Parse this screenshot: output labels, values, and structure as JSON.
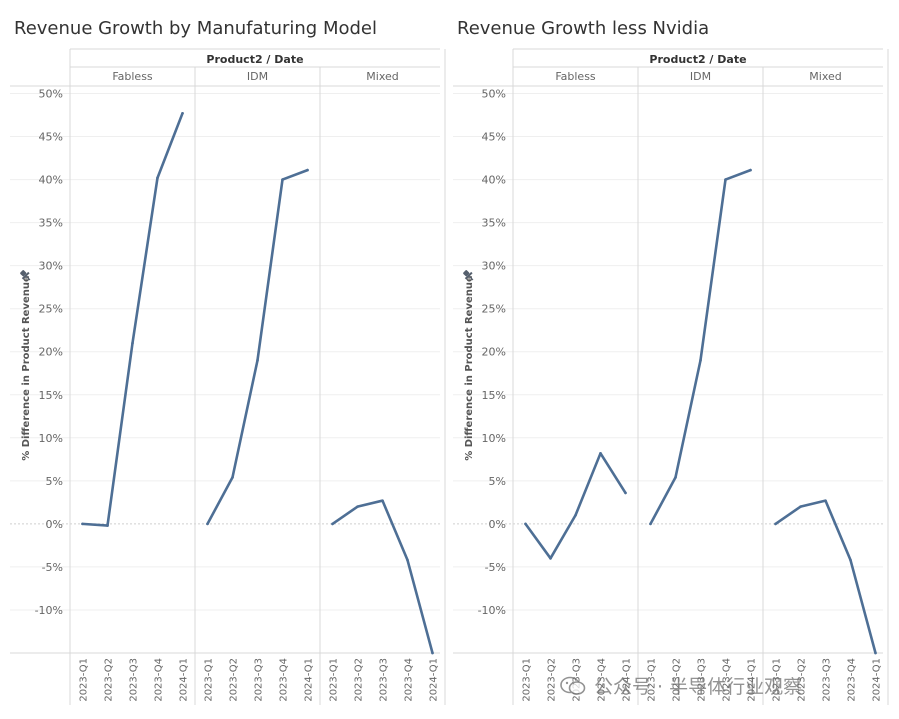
{
  "chart_data": [
    {
      "type": "line",
      "title": "Revenue Growth by Manufaturing Model",
      "header": "Product2 / Date",
      "ylabel": "% Difference in Product Revenue",
      "yticks": [
        "50%",
        "45%",
        "40%",
        "35%",
        "30%",
        "25%",
        "20%",
        "15%",
        "10%",
        "5%",
        "0%",
        "-5%",
        "-10%"
      ],
      "ytick_values": [
        50,
        45,
        40,
        35,
        30,
        25,
        20,
        15,
        10,
        5,
        0,
        -5,
        -10
      ],
      "ylim": [
        -15,
        50
      ],
      "x": [
        "2023-Q1",
        "2023-Q2",
        "2023-Q3",
        "2023-Q4",
        "2024-Q1"
      ],
      "color": "#4e6f95",
      "grid": true,
      "panes": [
        {
          "name": "Fabless",
          "values": [
            0.0,
            -0.2,
            21.0,
            40.2,
            47.7
          ]
        },
        {
          "name": "IDM",
          "values": [
            0.0,
            5.4,
            19.0,
            40.0,
            41.1
          ]
        },
        {
          "name": "Mixed",
          "values": [
            0.0,
            2.0,
            2.7,
            -4.2,
            -15.0
          ]
        }
      ]
    },
    {
      "type": "line",
      "title": "Revenue Growth less Nvidia",
      "header": "Product2 / Date",
      "ylabel": "% Difference in Product Revenue",
      "yticks": [
        "50%",
        "45%",
        "40%",
        "35%",
        "30%",
        "25%",
        "20%",
        "15%",
        "10%",
        "5%",
        "0%",
        "-5%",
        "-10%"
      ],
      "ytick_values": [
        50,
        45,
        40,
        35,
        30,
        25,
        20,
        15,
        10,
        5,
        0,
        -5,
        -10
      ],
      "ylim": [
        -15,
        50
      ],
      "x": [
        "2023-Q1",
        "2023-Q2",
        "2023-Q3",
        "2023-Q4",
        "2024-Q1"
      ],
      "color": "#4e6f95",
      "grid": true,
      "panes": [
        {
          "name": "Fabless",
          "values": [
            0.0,
            -4.0,
            1.0,
            8.2,
            3.6
          ]
        },
        {
          "name": "IDM",
          "values": [
            0.0,
            5.4,
            19.0,
            40.0,
            41.1
          ]
        },
        {
          "name": "Mixed",
          "values": [
            0.0,
            2.0,
            2.7,
            -4.2,
            -15.0
          ]
        }
      ]
    }
  ],
  "watermark": {
    "text": "公众号 · 半导体行业观察",
    "icon": "wechat-icon"
  }
}
